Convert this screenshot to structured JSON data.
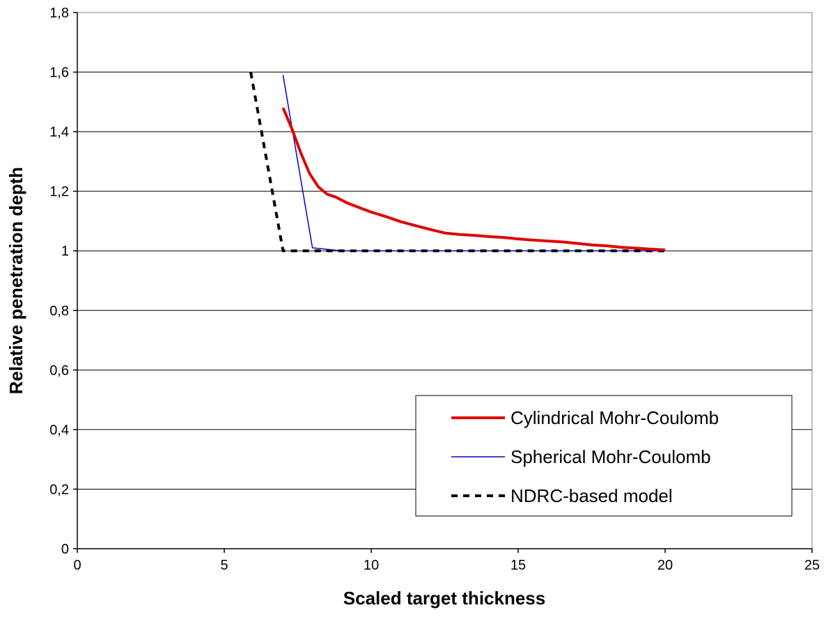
{
  "chart_data": {
    "type": "line",
    "xlabel": "Scaled target thickness",
    "ylabel": "Relative penetration depth",
    "xlim": [
      0,
      25
    ],
    "ylim": [
      0,
      1.8
    ],
    "x_ticks": [
      "0",
      "5",
      "10",
      "15",
      "20",
      "25"
    ],
    "y_ticks": [
      "0",
      "0,2",
      "0,4",
      "0,6",
      "0,8",
      "1",
      "1,2",
      "1,4",
      "1,6",
      "1,8"
    ],
    "grid": "horizontal",
    "legend_position": "bottom-right",
    "series": [
      {
        "name": "Cylindrical Mohr-Coulomb",
        "color": "#e00000",
        "style": "solid-thick",
        "x": [
          7,
          7.3,
          7.6,
          7.9,
          8.2,
          8.5,
          8.8,
          9.2,
          9.6,
          10,
          10.5,
          11,
          11.5,
          12,
          12.5,
          13,
          13.5,
          14,
          14.5,
          15,
          15.5,
          16,
          16.5,
          17,
          17.5,
          18,
          18.5,
          19,
          19.5,
          20
        ],
        "y": [
          1.48,
          1.41,
          1.33,
          1.26,
          1.215,
          1.19,
          1.18,
          1.16,
          1.145,
          1.13,
          1.115,
          1.098,
          1.085,
          1.072,
          1.06,
          1.055,
          1.052,
          1.048,
          1.045,
          1.04,
          1.036,
          1.033,
          1.03,
          1.025,
          1.02,
          1.017,
          1.012,
          1.009,
          1.006,
          1.003
        ]
      },
      {
        "name": "Spherical Mohr-Coulomb",
        "color": "#0000cc",
        "style": "solid-thin",
        "x": [
          7,
          8,
          9,
          10,
          12,
          15,
          18,
          20
        ],
        "y": [
          1.59,
          1.01,
          1.0,
          1.0,
          1.0,
          1.0,
          1.0,
          1.0
        ]
      },
      {
        "name": "NDRC-based model",
        "color": "#000000",
        "style": "dashed",
        "x": [
          5.9,
          7,
          7.1,
          20
        ],
        "y": [
          1.6,
          1.0,
          1.0,
          1.0
        ]
      }
    ]
  }
}
